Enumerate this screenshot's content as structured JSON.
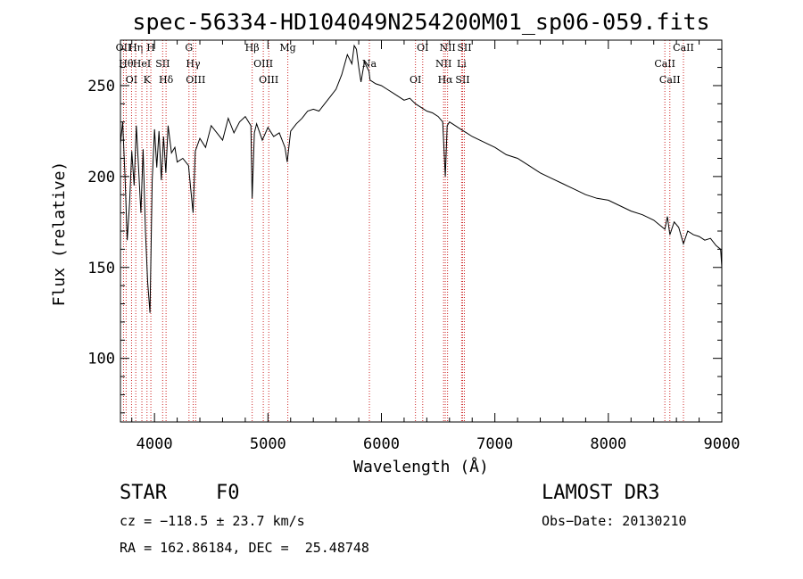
{
  "chart_data": {
    "type": "line",
    "title": "spec-56334-HD104049N254200M01_sp06-059.fits",
    "xlabel": "Wavelength (Å)",
    "ylabel": "Flux (relative)",
    "xlim": [
      3700,
      9000
    ],
    "ylim": [
      65,
      275
    ],
    "xticks": [
      4000,
      5000,
      6000,
      7000,
      8000,
      9000
    ],
    "yticks": [
      100,
      150,
      200,
      250
    ],
    "series": [
      {
        "name": "flux",
        "x": [
          3700,
          3720,
          3740,
          3760,
          3780,
          3800,
          3820,
          3840,
          3860,
          3880,
          3900,
          3920,
          3940,
          3960,
          3980,
          4000,
          4020,
          4040,
          4060,
          4080,
          4100,
          4120,
          4150,
          4180,
          4200,
          4250,
          4300,
          4320,
          4340,
          4360,
          4400,
          4450,
          4500,
          4550,
          4600,
          4650,
          4700,
          4750,
          4800,
          4850,
          4861,
          4880,
          4900,
          4950,
          5000,
          5050,
          5100,
          5150,
          5170,
          5200,
          5250,
          5300,
          5350,
          5400,
          5450,
          5500,
          5550,
          5600,
          5650,
          5700,
          5740,
          5760,
          5780,
          5800,
          5820,
          5850,
          5890,
          5900,
          5950,
          6000,
          6050,
          6100,
          6150,
          6200,
          6250,
          6300,
          6350,
          6400,
          6450,
          6500,
          6540,
          6563,
          6580,
          6600,
          6650,
          6700,
          6750,
          6800,
          6900,
          7000,
          7100,
          7200,
          7300,
          7400,
          7500,
          7600,
          7700,
          7800,
          7900,
          8000,
          8100,
          8200,
          8300,
          8400,
          8498,
          8520,
          8542,
          8580,
          8620,
          8662,
          8700,
          8750,
          8800,
          8850,
          8900,
          8950,
          8990,
          9000
        ],
        "values": [
          218,
          230,
          200,
          165,
          185,
          214,
          195,
          228,
          205,
          180,
          215,
          170,
          142,
          125,
          198,
          226,
          205,
          225,
          198,
          222,
          202,
          228,
          213,
          216,
          208,
          210,
          206,
          193,
          180,
          214,
          221,
          216,
          228,
          224,
          220,
          232,
          224,
          230,
          233,
          228,
          188,
          224,
          229,
          220,
          227,
          222,
          224,
          216,
          208,
          225,
          229,
          232,
          236,
          237,
          236,
          240,
          244,
          248,
          256,
          267,
          262,
          272,
          270,
          260,
          252,
          263,
          258,
          253,
          251,
          250,
          248,
          246,
          244,
          242,
          243,
          240,
          238,
          236,
          235,
          233,
          230,
          200,
          228,
          230,
          228,
          226,
          224,
          222,
          219,
          216,
          212,
          210,
          206,
          202,
          199,
          196,
          193,
          190,
          188,
          187,
          184,
          181,
          179,
          176,
          171,
          178,
          168,
          175,
          172,
          163,
          170,
          168,
          167,
          165,
          166,
          162,
          160,
          150
        ]
      }
    ],
    "lines": [
      {
        "wavelength": 3727,
        "label": "OII"
      },
      {
        "wavelength": 3750,
        "label": "Hθ"
      },
      {
        "wavelength": 3798,
        "label": "OI"
      },
      {
        "wavelength": 3835,
        "label": "Hη"
      },
      {
        "wavelength": 3889,
        "label": "HeI"
      },
      {
        "wavelength": 3934,
        "label": "K"
      },
      {
        "wavelength": 3968,
        "label": "H"
      },
      {
        "wavelength": 4072,
        "label": "SII"
      },
      {
        "wavelength": 4102,
        "label": "Hδ"
      },
      {
        "wavelength": 4304,
        "label": "G"
      },
      {
        "wavelength": 4341,
        "label": "Hγ"
      },
      {
        "wavelength": 4363,
        "label": "OIII"
      },
      {
        "wavelength": 4861,
        "label": "Hβ"
      },
      {
        "wavelength": 4959,
        "label": "OIII"
      },
      {
        "wavelength": 5007,
        "label": "OIII"
      },
      {
        "wavelength": 5175,
        "label": "Mg"
      },
      {
        "wavelength": 5894,
        "label": "Na"
      },
      {
        "wavelength": 6300,
        "label": "OI"
      },
      {
        "wavelength": 6364,
        "label": "OI"
      },
      {
        "wavelength": 6548,
        "label": "NII"
      },
      {
        "wavelength": 6563,
        "label": "Hα"
      },
      {
        "wavelength": 6583,
        "label": "NII"
      },
      {
        "wavelength": 6707,
        "label": "Li"
      },
      {
        "wavelength": 6716,
        "label": "SII"
      },
      {
        "wavelength": 6731,
        "label": "SII"
      },
      {
        "wavelength": 8498,
        "label": "CaII"
      },
      {
        "wavelength": 8542,
        "label": "CaII"
      },
      {
        "wavelength": 8662,
        "label": "CaII"
      }
    ]
  },
  "info": {
    "class_label": "STAR",
    "subclass": "F0",
    "survey": "LAMOST DR3",
    "redshift": "cz = −118.5 ± 23.7 km/s",
    "obs_date": "Obs−Date: 20130210",
    "coords": "RA = 162.86184, DEC =  25.48748"
  },
  "colors": {
    "line": "#000000",
    "marker": "#cc2222"
  }
}
